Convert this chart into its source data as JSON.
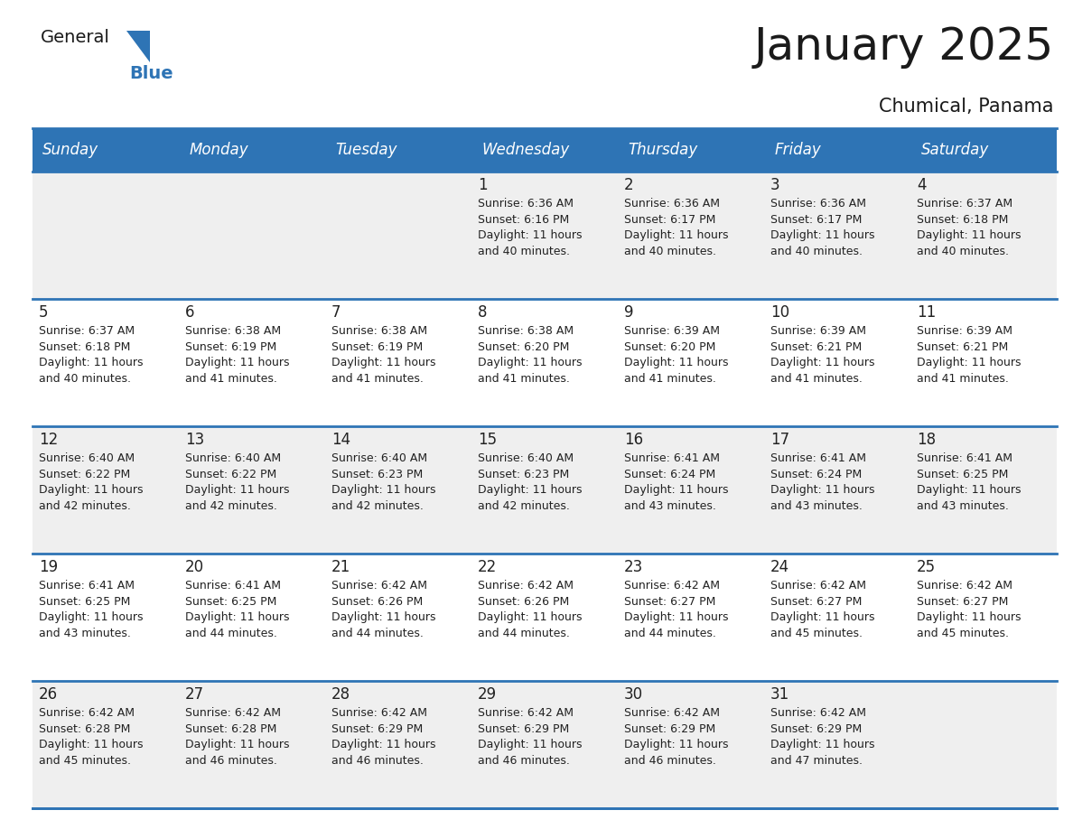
{
  "title": "January 2025",
  "subtitle": "Chumical, Panama",
  "days_of_week": [
    "Sunday",
    "Monday",
    "Tuesday",
    "Wednesday",
    "Thursday",
    "Friday",
    "Saturday"
  ],
  "header_bg": "#2E74B5",
  "header_text": "#FFFFFF",
  "row_bg_odd": "#EFEFEF",
  "row_bg_even": "#FFFFFF",
  "separator_color": "#2E74B5",
  "text_color": "#222222",
  "calendar_data": [
    [
      null,
      null,
      null,
      {
        "day": 1,
        "sunrise": "6:36 AM",
        "sunset": "6:16 PM",
        "daylight_h": "11 hours",
        "daylight_m": "and 40 minutes."
      },
      {
        "day": 2,
        "sunrise": "6:36 AM",
        "sunset": "6:17 PM",
        "daylight_h": "11 hours",
        "daylight_m": "and 40 minutes."
      },
      {
        "day": 3,
        "sunrise": "6:36 AM",
        "sunset": "6:17 PM",
        "daylight_h": "11 hours",
        "daylight_m": "and 40 minutes."
      },
      {
        "day": 4,
        "sunrise": "6:37 AM",
        "sunset": "6:18 PM",
        "daylight_h": "11 hours",
        "daylight_m": "and 40 minutes."
      }
    ],
    [
      {
        "day": 5,
        "sunrise": "6:37 AM",
        "sunset": "6:18 PM",
        "daylight_h": "11 hours",
        "daylight_m": "and 40 minutes."
      },
      {
        "day": 6,
        "sunrise": "6:38 AM",
        "sunset": "6:19 PM",
        "daylight_h": "11 hours",
        "daylight_m": "and 41 minutes."
      },
      {
        "day": 7,
        "sunrise": "6:38 AM",
        "sunset": "6:19 PM",
        "daylight_h": "11 hours",
        "daylight_m": "and 41 minutes."
      },
      {
        "day": 8,
        "sunrise": "6:38 AM",
        "sunset": "6:20 PM",
        "daylight_h": "11 hours",
        "daylight_m": "and 41 minutes."
      },
      {
        "day": 9,
        "sunrise": "6:39 AM",
        "sunset": "6:20 PM",
        "daylight_h": "11 hours",
        "daylight_m": "and 41 minutes."
      },
      {
        "day": 10,
        "sunrise": "6:39 AM",
        "sunset": "6:21 PM",
        "daylight_h": "11 hours",
        "daylight_m": "and 41 minutes."
      },
      {
        "day": 11,
        "sunrise": "6:39 AM",
        "sunset": "6:21 PM",
        "daylight_h": "11 hours",
        "daylight_m": "and 41 minutes."
      }
    ],
    [
      {
        "day": 12,
        "sunrise": "6:40 AM",
        "sunset": "6:22 PM",
        "daylight_h": "11 hours",
        "daylight_m": "and 42 minutes."
      },
      {
        "day": 13,
        "sunrise": "6:40 AM",
        "sunset": "6:22 PM",
        "daylight_h": "11 hours",
        "daylight_m": "and 42 minutes."
      },
      {
        "day": 14,
        "sunrise": "6:40 AM",
        "sunset": "6:23 PM",
        "daylight_h": "11 hours",
        "daylight_m": "and 42 minutes."
      },
      {
        "day": 15,
        "sunrise": "6:40 AM",
        "sunset": "6:23 PM",
        "daylight_h": "11 hours",
        "daylight_m": "and 42 minutes."
      },
      {
        "day": 16,
        "sunrise": "6:41 AM",
        "sunset": "6:24 PM",
        "daylight_h": "11 hours",
        "daylight_m": "and 43 minutes."
      },
      {
        "day": 17,
        "sunrise": "6:41 AM",
        "sunset": "6:24 PM",
        "daylight_h": "11 hours",
        "daylight_m": "and 43 minutes."
      },
      {
        "day": 18,
        "sunrise": "6:41 AM",
        "sunset": "6:25 PM",
        "daylight_h": "11 hours",
        "daylight_m": "and 43 minutes."
      }
    ],
    [
      {
        "day": 19,
        "sunrise": "6:41 AM",
        "sunset": "6:25 PM",
        "daylight_h": "11 hours",
        "daylight_m": "and 43 minutes."
      },
      {
        "day": 20,
        "sunrise": "6:41 AM",
        "sunset": "6:25 PM",
        "daylight_h": "11 hours",
        "daylight_m": "and 44 minutes."
      },
      {
        "day": 21,
        "sunrise": "6:42 AM",
        "sunset": "6:26 PM",
        "daylight_h": "11 hours",
        "daylight_m": "and 44 minutes."
      },
      {
        "day": 22,
        "sunrise": "6:42 AM",
        "sunset": "6:26 PM",
        "daylight_h": "11 hours",
        "daylight_m": "and 44 minutes."
      },
      {
        "day": 23,
        "sunrise": "6:42 AM",
        "sunset": "6:27 PM",
        "daylight_h": "11 hours",
        "daylight_m": "and 44 minutes."
      },
      {
        "day": 24,
        "sunrise": "6:42 AM",
        "sunset": "6:27 PM",
        "daylight_h": "11 hours",
        "daylight_m": "and 45 minutes."
      },
      {
        "day": 25,
        "sunrise": "6:42 AM",
        "sunset": "6:27 PM",
        "daylight_h": "11 hours",
        "daylight_m": "and 45 minutes."
      }
    ],
    [
      {
        "day": 26,
        "sunrise": "6:42 AM",
        "sunset": "6:28 PM",
        "daylight_h": "11 hours",
        "daylight_m": "and 45 minutes."
      },
      {
        "day": 27,
        "sunrise": "6:42 AM",
        "sunset": "6:28 PM",
        "daylight_h": "11 hours",
        "daylight_m": "and 46 minutes."
      },
      {
        "day": 28,
        "sunrise": "6:42 AM",
        "sunset": "6:29 PM",
        "daylight_h": "11 hours",
        "daylight_m": "and 46 minutes."
      },
      {
        "day": 29,
        "sunrise": "6:42 AM",
        "sunset": "6:29 PM",
        "daylight_h": "11 hours",
        "daylight_m": "and 46 minutes."
      },
      {
        "day": 30,
        "sunrise": "6:42 AM",
        "sunset": "6:29 PM",
        "daylight_h": "11 hours",
        "daylight_m": "and 46 minutes."
      },
      {
        "day": 31,
        "sunrise": "6:42 AM",
        "sunset": "6:29 PM",
        "daylight_h": "11 hours",
        "daylight_m": "and 47 minutes."
      },
      null
    ]
  ],
  "logo_color_general": "#1a1a1a",
  "logo_color_blue": "#2E74B5",
  "logo_triangle_color": "#2E74B5",
  "title_fontsize": 36,
  "subtitle_fontsize": 15,
  "header_fontsize": 12,
  "day_num_fontsize": 12,
  "cell_text_fontsize": 9
}
